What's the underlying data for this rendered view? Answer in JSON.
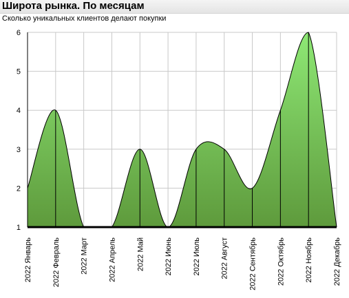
{
  "header": {
    "title": "Широта рынка. По месяцам",
    "subtitle": "Сколько уникальных клиентов делают покупки"
  },
  "chart_data": {
    "type": "area",
    "title": "Широта рынка. По месяцам",
    "subtitle": "Сколько уникальных клиентов делают покупки",
    "xlabel": "",
    "ylabel": "",
    "categories": [
      "2022 Январь",
      "2022 Февраль",
      "2022 Март",
      "2022 Апрель",
      "2022 Май",
      "2022 Июнь",
      "2022 Июль",
      "2022 Август",
      "2022 Сентябрь",
      "2022 Октябрь",
      "2022 Ноябрь",
      "2022 Декабрь"
    ],
    "values": [
      2,
      4,
      1,
      1,
      3,
      1,
      3,
      3,
      2,
      4,
      6,
      1
    ],
    "ylim": [
      1,
      6
    ],
    "yticks": [
      1,
      2,
      3,
      4,
      5,
      6
    ],
    "grid": true,
    "legend": "none",
    "colors": {
      "fill_top": "#8ee875",
      "fill_bottom": "#5e9a3c",
      "line": "#000000",
      "grid": "#c8c8c8"
    }
  }
}
